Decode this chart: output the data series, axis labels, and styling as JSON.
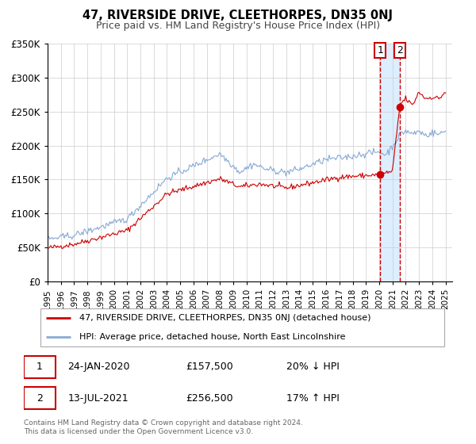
{
  "title": "47, RIVERSIDE DRIVE, CLEETHORPES, DN35 0NJ",
  "subtitle": "Price paid vs. HM Land Registry's House Price Index (HPI)",
  "ylim": [
    0,
    350000
  ],
  "xlim_start": 1995.0,
  "xlim_end": 2025.5,
  "yticks": [
    0,
    50000,
    100000,
    150000,
    200000,
    250000,
    300000,
    350000
  ],
  "ytick_labels": [
    "£0",
    "£50K",
    "£100K",
    "£150K",
    "£200K",
    "£250K",
    "£300K",
    "£350K"
  ],
  "xticks": [
    1995,
    1996,
    1997,
    1998,
    1999,
    2000,
    2001,
    2002,
    2003,
    2004,
    2005,
    2006,
    2007,
    2008,
    2009,
    2010,
    2011,
    2012,
    2013,
    2014,
    2015,
    2016,
    2017,
    2018,
    2019,
    2020,
    2021,
    2022,
    2023,
    2024,
    2025
  ],
  "red_line_color": "#cc0000",
  "blue_line_color": "#88aad4",
  "highlight_bg_color": "#ddeeff",
  "vline_color": "#cc0000",
  "point1_x": 2020.07,
  "point1_y": 157500,
  "point2_x": 2021.54,
  "point2_y": 256500,
  "label1_date": "24-JAN-2020",
  "label1_price": "£157,500",
  "label1_note": "20% ↓ HPI",
  "label2_date": "13-JUL-2021",
  "label2_price": "£256,500",
  "label2_note": "17% ↑ HPI",
  "legend_red": "47, RIVERSIDE DRIVE, CLEETHORPES, DN35 0NJ (detached house)",
  "legend_blue": "HPI: Average price, detached house, North East Lincolnshire",
  "footnote": "Contains HM Land Registry data © Crown copyright and database right 2024.\nThis data is licensed under the Open Government Licence v3.0.",
  "background_color": "#ffffff"
}
